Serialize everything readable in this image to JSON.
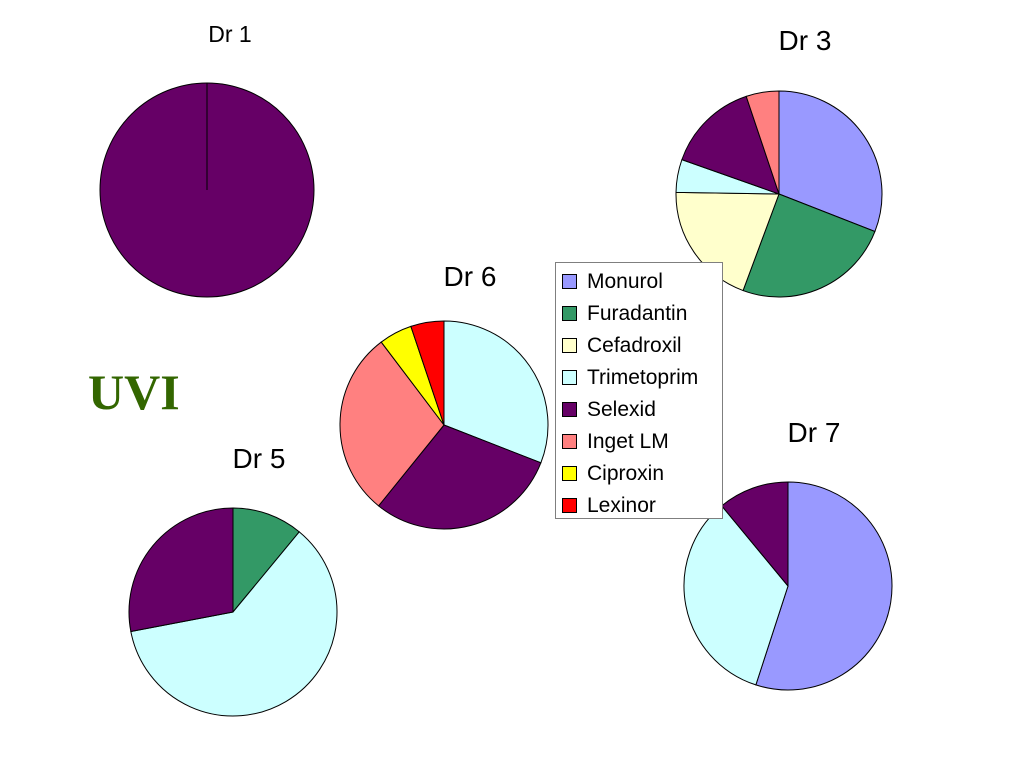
{
  "slide": {
    "title": "UVI"
  },
  "legend": {
    "items": [
      {
        "label": "Monurol",
        "color": "#9999ff"
      },
      {
        "label": "Furadantin",
        "color": "#339966"
      },
      {
        "label": "Cefadroxil",
        "color": "#ffffcc"
      },
      {
        "label": "Trimetoprim",
        "color": "#ccffff"
      },
      {
        "label": "Selexid",
        "color": "#660066"
      },
      {
        "label": "Inget LM",
        "color": "#ff8080"
      },
      {
        "label": "Ciproxin",
        "color": "#ffff00"
      },
      {
        "label": "Lexinor",
        "color": "#ff0000"
      }
    ]
  },
  "chart_data": [
    {
      "type": "pie",
      "title": "Dr 1",
      "categories": [
        "Monurol",
        "Furadantin",
        "Cefadroxil",
        "Trimetoprim",
        "Selexid",
        "Inget LM",
        "Ciproxin",
        "Lexinor"
      ],
      "values": [
        0,
        0,
        0,
        0,
        100,
        0,
        0,
        0
      ]
    },
    {
      "type": "pie",
      "title": "Dr 3",
      "categories": [
        "Monurol",
        "Furadantin",
        "Cefadroxil",
        "Trimetoprim",
        "Selexid",
        "Inget LM",
        "Ciproxin",
        "Lexinor"
      ],
      "values": [
        30,
        24,
        19,
        5,
        14,
        5,
        0,
        0
      ]
    },
    {
      "type": "pie",
      "title": "Dr 6",
      "categories": [
        "Monurol",
        "Furadantin",
        "Cefadroxil",
        "Trimetoprim",
        "Selexid",
        "Inget LM",
        "Ciproxin",
        "Lexinor"
      ],
      "values": [
        0,
        0,
        0,
        30,
        29,
        28,
        5,
        5
      ]
    },
    {
      "type": "pie",
      "title": "Dr 5",
      "categories": [
        "Monurol",
        "Furadantin",
        "Cefadroxil",
        "Trimetoprim",
        "Selexid",
        "Inget LM",
        "Ciproxin",
        "Lexinor"
      ],
      "values": [
        0,
        11,
        0,
        61,
        28,
        0,
        0,
        0
      ]
    },
    {
      "type": "pie",
      "title": "Dr 7",
      "categories": [
        "Monurol",
        "Furadantin",
        "Cefadroxil",
        "Trimetoprim",
        "Selexid",
        "Inget LM",
        "Ciproxin",
        "Lexinor"
      ],
      "values": [
        55,
        0,
        0,
        34,
        11,
        0,
        0,
        0
      ]
    }
  ]
}
